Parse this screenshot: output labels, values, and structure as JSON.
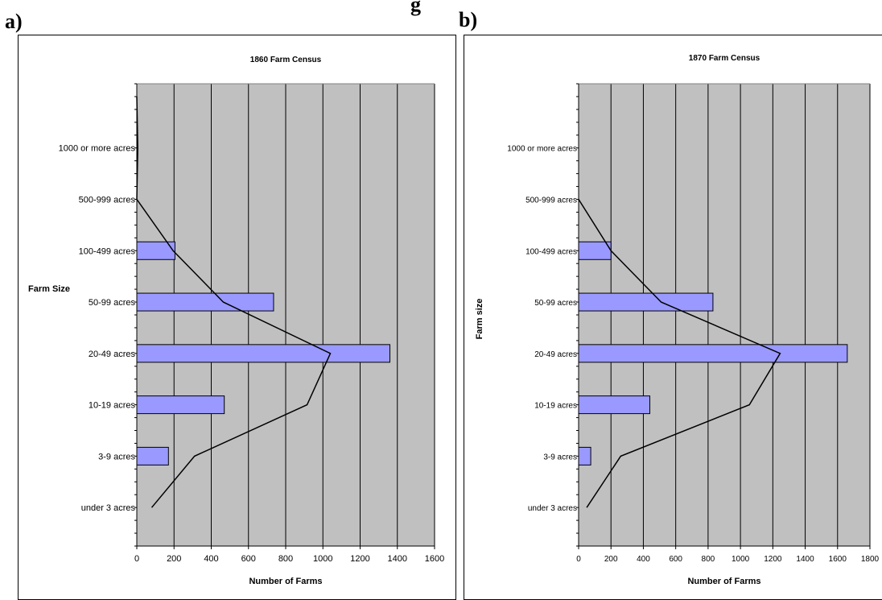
{
  "header_fragment": "g",
  "panel_labels": {
    "a": "a)",
    "b": "b)"
  },
  "chart_data": [
    {
      "type": "bar",
      "panel": "a)",
      "title": "1860 Farm Census",
      "xlabel": "Number of Farms",
      "ylabel": "Farm Size",
      "orientation": "horizontal",
      "categories": [
        "under 3 acres",
        "3-9 acres",
        "10-19 acres",
        "20-49 acres",
        "50-99 acres",
        "100-499 acres",
        "500-999 acres",
        "1000 or more acres"
      ],
      "values": [
        0,
        170,
        470,
        1360,
        735,
        205,
        0,
        0
      ],
      "overlay_line": {
        "points": [
          [
            3,
            80
          ],
          [
            7,
            310
          ],
          [
            11,
            915
          ],
          [
            15,
            1040
          ],
          [
            19,
            465
          ],
          [
            23,
            195
          ],
          [
            27,
            0
          ],
          [
            31,
            5
          ],
          [
            35,
            0
          ]
        ]
      },
      "xlim": [
        0,
        1600
      ],
      "xticks": [
        0,
        200,
        400,
        600,
        800,
        1000,
        1200,
        1400,
        1600
      ],
      "grid": "vertical",
      "plot_bg": "#C0C0C0",
      "bar_color": "#9999FF"
    },
    {
      "type": "bar",
      "panel": "b)",
      "title": "1870 Farm Census",
      "xlabel": "Number of Farms",
      "ylabel": "Farm size",
      "orientation": "horizontal",
      "categories": [
        "under 3 acres",
        "3-9 acres",
        "10-19 acres",
        "20-49 acres",
        "50-99 acres",
        "100-499 acres",
        "500-999 acres",
        "1000 or more acres"
      ],
      "values": [
        0,
        75,
        440,
        1660,
        830,
        200,
        0,
        0
      ],
      "overlay_line": {
        "points": [
          [
            3,
            50
          ],
          [
            7,
            260
          ],
          [
            11,
            1055
          ],
          [
            15,
            1245
          ],
          [
            19,
            510
          ],
          [
            23,
            200
          ],
          [
            27,
            0
          ]
        ]
      },
      "xlim": [
        0,
        1800
      ],
      "xticks": [
        0,
        200,
        400,
        600,
        800,
        1000,
        1200,
        1400,
        1600,
        1800
      ],
      "grid": "vertical",
      "plot_bg": "#C0C0C0",
      "bar_color": "#9999FF"
    }
  ]
}
